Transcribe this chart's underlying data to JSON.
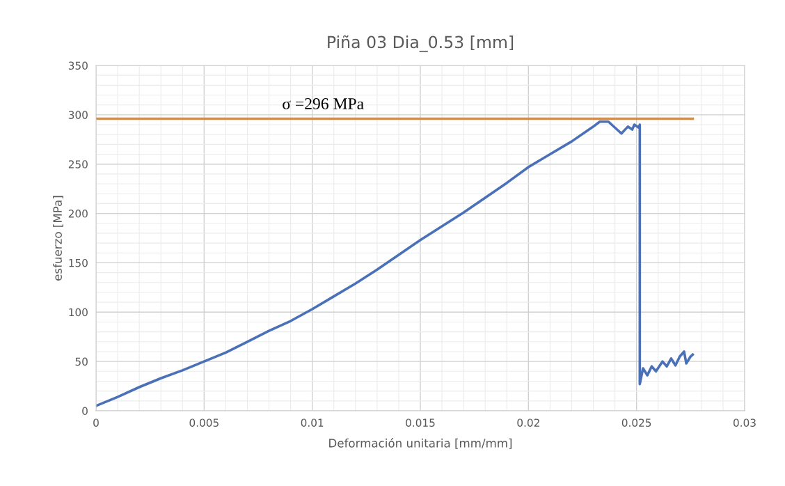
{
  "chart_data": {
    "type": "line",
    "title": "Piña 03 Dia_0.53 [mm]",
    "xlabel": "Deformación unitaria [mm/mm]",
    "ylabel": "esfuerzo [MPa]",
    "xlim": [
      0,
      0.03
    ],
    "xticks": [
      0,
      0.005,
      0.01,
      0.015,
      0.02,
      0.025,
      0.03
    ],
    "ylim": [
      0,
      350
    ],
    "yticks": [
      0,
      50,
      100,
      150,
      200,
      250,
      300,
      350
    ],
    "grid": true,
    "legend": false,
    "marker": "none",
    "line_style": "solid",
    "series": [
      {
        "color": "#4a70b8",
        "x": [
          0,
          0.001,
          0.002,
          0.003,
          0.004,
          0.005,
          0.006,
          0.007,
          0.008,
          0.009,
          0.01,
          0.011,
          0.012,
          0.013,
          0.014,
          0.015,
          0.016,
          0.017,
          0.018,
          0.019,
          0.02,
          0.021,
          0.022,
          0.023,
          0.0233,
          0.0237,
          0.024,
          0.0243,
          0.0246,
          0.0248,
          0.0249,
          0.0251,
          0.02515,
          0.02515,
          0.0253,
          0.0255,
          0.0257,
          0.0259,
          0.0262,
          0.0264,
          0.0266,
          0.0268,
          0.027,
          0.0272,
          0.0273,
          0.0275,
          0.0276
        ],
        "values": [
          5,
          14,
          24,
          33,
          41,
          50,
          59,
          70,
          81,
          91,
          103,
          116,
          129,
          143,
          158,
          173,
          187,
          201,
          216,
          231,
          247,
          260,
          273,
          288,
          293,
          293,
          287,
          281,
          288,
          285,
          290,
          287,
          290,
          27,
          43,
          36,
          45,
          40,
          50,
          45,
          53,
          46,
          55,
          60,
          48,
          55,
          57
        ]
      },
      {
        "color": "#e08a3c",
        "x": [
          0,
          0.0276
        ],
        "values": [
          296,
          296
        ]
      }
    ],
    "annotations": [
      "σ =296 MPa"
    ]
  }
}
